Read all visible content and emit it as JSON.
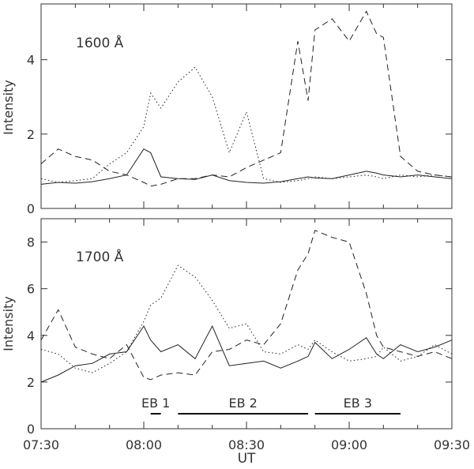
{
  "chart_data": [
    {
      "type": "line",
      "annotation": "1600 Å",
      "ylabel": "Intensity",
      "xlabel": "",
      "xlim": [
        "07:30",
        "09:30"
      ],
      "ylim": [
        0,
        5.5
      ],
      "yticks": [
        0,
        2,
        4
      ],
      "x": [
        "07:30",
        "07:35",
        "07:40",
        "07:45",
        "07:50",
        "07:55",
        "08:00",
        "08:02",
        "08:05",
        "08:10",
        "08:15",
        "08:20",
        "08:25",
        "08:30",
        "08:35",
        "08:40",
        "08:45",
        "08:48",
        "08:50",
        "08:55",
        "09:00",
        "09:05",
        "09:08",
        "09:10",
        "09:15",
        "09:20",
        "09:25",
        "09:30"
      ],
      "series": [
        {
          "style": "solid",
          "values": [
            0.65,
            0.7,
            0.68,
            0.72,
            0.8,
            0.9,
            1.6,
            1.5,
            0.85,
            0.8,
            0.78,
            0.9,
            0.75,
            0.7,
            0.68,
            0.72,
            0.8,
            0.85,
            0.82,
            0.8,
            0.9,
            1.0,
            0.95,
            0.9,
            0.85,
            0.9,
            0.85,
            0.8
          ]
        },
        {
          "style": "dotted",
          "values": [
            0.8,
            0.7,
            0.75,
            0.8,
            1.2,
            1.5,
            2.2,
            3.1,
            2.7,
            3.4,
            3.8,
            3.0,
            1.5,
            2.6,
            0.8,
            0.7,
            0.75,
            0.8,
            0.85,
            0.8,
            0.85,
            0.9,
            0.85,
            0.8,
            0.9,
            0.85,
            0.9,
            0.85
          ]
        },
        {
          "style": "dashed",
          "values": [
            1.2,
            1.6,
            1.4,
            1.3,
            1.0,
            0.9,
            0.7,
            0.6,
            0.65,
            0.8,
            0.8,
            0.9,
            0.85,
            1.1,
            1.3,
            1.5,
            4.5,
            2.9,
            4.8,
            5.1,
            4.5,
            5.3,
            4.7,
            4.6,
            1.4,
            1.0,
            0.9,
            0.85
          ]
        }
      ]
    },
    {
      "type": "line",
      "annotation": "1700 Å",
      "ylabel": "Intensity",
      "xlabel": "UT",
      "xlim": [
        "07:30",
        "09:30"
      ],
      "ylim": [
        0,
        9
      ],
      "yticks": [
        0,
        2,
        4,
        6,
        8
      ],
      "xticks": [
        "07:30",
        "08:00",
        "08:30",
        "09:00",
        "09:30"
      ],
      "x": [
        "07:30",
        "07:35",
        "07:40",
        "07:45",
        "07:50",
        "07:55",
        "08:00",
        "08:02",
        "08:05",
        "08:10",
        "08:15",
        "08:20",
        "08:25",
        "08:30",
        "08:35",
        "08:40",
        "08:45",
        "08:48",
        "08:50",
        "08:55",
        "09:00",
        "09:05",
        "09:08",
        "09:10",
        "09:15",
        "09:20",
        "09:25",
        "09:30"
      ],
      "series": [
        {
          "style": "solid",
          "values": [
            2.0,
            2.3,
            2.7,
            2.8,
            3.2,
            3.3,
            4.4,
            3.8,
            3.3,
            3.6,
            3.0,
            4.4,
            2.7,
            2.8,
            2.9,
            2.6,
            2.9,
            3.1,
            3.7,
            3.0,
            3.4,
            3.9,
            3.2,
            3.0,
            3.6,
            3.3,
            3.5,
            3.8
          ]
        },
        {
          "style": "dotted",
          "values": [
            3.4,
            3.2,
            2.6,
            2.4,
            2.8,
            3.3,
            4.6,
            5.3,
            5.6,
            7.0,
            6.5,
            5.5,
            4.3,
            4.5,
            3.3,
            3.2,
            3.6,
            3.4,
            3.8,
            3.3,
            2.9,
            3.0,
            3.1,
            3.5,
            2.9,
            3.1,
            3.6,
            3.2
          ]
        },
        {
          "style": "dashed",
          "values": [
            3.8,
            5.1,
            3.5,
            3.2,
            3.0,
            3.6,
            2.2,
            2.1,
            2.3,
            2.4,
            2.3,
            3.3,
            3.4,
            3.8,
            3.6,
            4.5,
            6.8,
            7.5,
            8.5,
            8.2,
            8.0,
            5.8,
            4.0,
            3.5,
            3.3,
            3.1,
            3.3,
            3.0
          ]
        }
      ],
      "annotations": [
        {
          "label": "EB 1",
          "start": "08:02",
          "end": "08:05"
        },
        {
          "label": "EB 2",
          "start": "08:10",
          "end": "08:48"
        },
        {
          "label": "EB 3",
          "start": "08:50",
          "end": "09:15"
        }
      ]
    }
  ]
}
